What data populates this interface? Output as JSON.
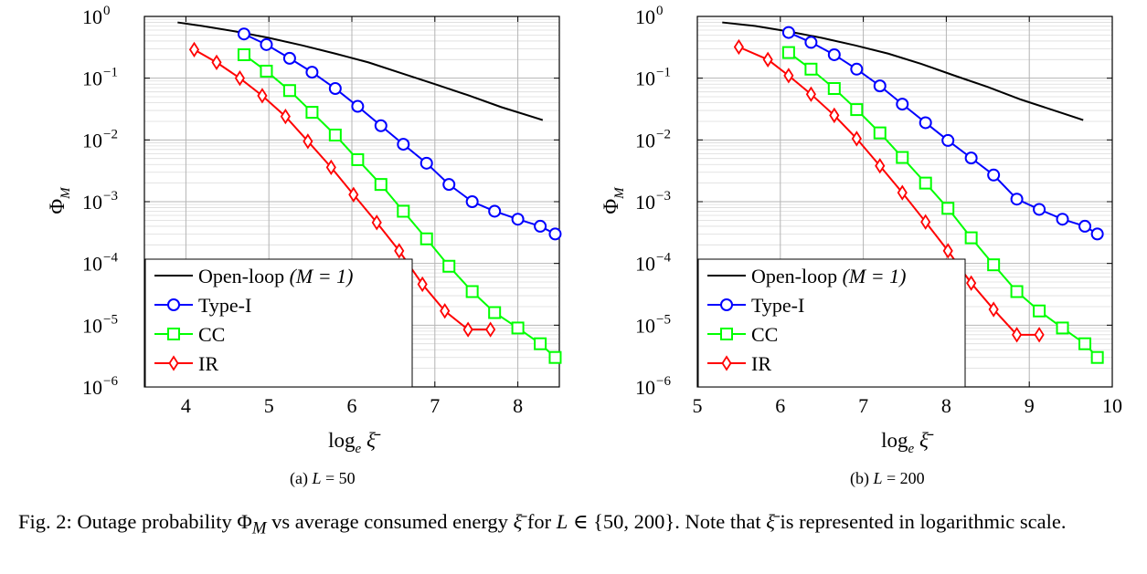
{
  "caption": {
    "label": "Fig. 2:",
    "text": "Outage probability Φ",
    "sub": "M",
    "text2": " vs average consumed energy ",
    "xi": "ξ̄",
    "text3": " for ",
    "L": "L",
    "set": " ∈ {50, 200}. Note that ",
    "text4": " is represented in logarithmic scale."
  },
  "colors": {
    "open_loop": "#000000",
    "type_i": "#0000ff",
    "cc": "#00ff00",
    "ir": "#ff0000"
  },
  "chart_data": [
    {
      "type": "line",
      "subcaption": "(a) L = 50",
      "subcaption_prefix": "(a)",
      "subcaption_var": "L",
      "subcaption_value": " = 50",
      "xlabel": "log",
      "xlabel_sub": "e",
      "xlabel_var": "ξ̄",
      "ylabel": "Φ",
      "ylabel_sub": "M",
      "xlim": [
        3.5,
        8.5
      ],
      "ylim": [
        1e-06,
        1
      ],
      "yscale": "log",
      "xticks": [
        "4",
        "5",
        "6",
        "7",
        "8"
      ],
      "yticks": [
        {
          "base": "10",
          "exp": "0"
        },
        {
          "base": "10",
          "exp": "−1"
        },
        {
          "base": "10",
          "exp": "−2"
        },
        {
          "base": "10",
          "exp": "−3"
        },
        {
          "base": "10",
          "exp": "−4"
        },
        {
          "base": "10",
          "exp": "−5"
        },
        {
          "base": "10",
          "exp": "−6"
        }
      ],
      "grid": true,
      "legend_position": "bottom-left",
      "series": [
        {
          "name": "Open-loop",
          "name_math": "(M = 1)",
          "marker": "none",
          "color": "#000000",
          "x": [
            3.9,
            4.2,
            4.6,
            5.0,
            5.4,
            5.8,
            6.2,
            6.6,
            7.0,
            7.4,
            7.8,
            8.3
          ],
          "y": [
            0.8,
            0.7,
            0.57,
            0.45,
            0.34,
            0.25,
            0.18,
            0.12,
            0.08,
            0.053,
            0.034,
            0.021
          ]
        },
        {
          "name": "Type-I",
          "marker": "circle",
          "color": "#0000ff",
          "x": [
            4.7,
            4.97,
            5.25,
            5.52,
            5.8,
            6.07,
            6.35,
            6.62,
            6.9,
            7.17,
            7.45,
            7.72,
            8.0,
            8.27,
            8.45
          ],
          "y": [
            0.52,
            0.35,
            0.21,
            0.125,
            0.068,
            0.035,
            0.017,
            0.0085,
            0.0042,
            0.0019,
            0.001,
            0.0007,
            0.00052,
            0.0004,
            0.0003
          ]
        },
        {
          "name": "CC",
          "marker": "square",
          "color": "#00ff00",
          "x": [
            4.7,
            4.97,
            5.25,
            5.52,
            5.8,
            6.07,
            6.35,
            6.62,
            6.9,
            7.17,
            7.45,
            7.72,
            8.0,
            8.27,
            8.45
          ],
          "y": [
            0.24,
            0.13,
            0.063,
            0.028,
            0.012,
            0.0048,
            0.0019,
            0.0007,
            0.00025,
            9e-05,
            3.5e-05,
            1.6e-05,
            9e-06,
            5e-06,
            3e-06
          ]
        },
        {
          "name": "IR",
          "marker": "diamond",
          "color": "#ff0000",
          "x": [
            4.1,
            4.37,
            4.65,
            4.92,
            5.2,
            5.47,
            5.75,
            6.02,
            6.3,
            6.57,
            6.85,
            7.12,
            7.4,
            7.67
          ],
          "y": [
            0.29,
            0.18,
            0.1,
            0.052,
            0.024,
            0.0095,
            0.0036,
            0.0013,
            0.00046,
            0.00016,
            4.6e-05,
            1.7e-05,
            8.5e-06,
            8.5e-06
          ]
        }
      ]
    },
    {
      "type": "line",
      "subcaption": "(b) L = 200",
      "subcaption_prefix": "(b)",
      "subcaption_var": "L",
      "subcaption_value": " = 200",
      "xlabel": "log",
      "xlabel_sub": "e",
      "xlabel_var": "ξ̄",
      "ylabel": "Φ",
      "ylabel_sub": "M",
      "xlim": [
        5,
        10
      ],
      "ylim": [
        1e-06,
        1
      ],
      "yscale": "log",
      "xticks": [
        "5",
        "6",
        "7",
        "8",
        "9",
        "10"
      ],
      "yticks": [
        {
          "base": "10",
          "exp": "0"
        },
        {
          "base": "10",
          "exp": "−1"
        },
        {
          "base": "10",
          "exp": "−2"
        },
        {
          "base": "10",
          "exp": "−3"
        },
        {
          "base": "10",
          "exp": "−4"
        },
        {
          "base": "10",
          "exp": "−5"
        },
        {
          "base": "10",
          "exp": "−6"
        }
      ],
      "grid": true,
      "legend_position": "bottom-left",
      "series": [
        {
          "name": "Open-loop",
          "name_math": "(M = 1)",
          "marker": "none",
          "color": "#000000",
          "x": [
            5.3,
            5.7,
            6.1,
            6.5,
            6.9,
            7.3,
            7.7,
            8.1,
            8.5,
            8.9,
            9.3,
            9.65
          ],
          "y": [
            0.8,
            0.7,
            0.57,
            0.45,
            0.34,
            0.25,
            0.17,
            0.11,
            0.072,
            0.045,
            0.03,
            0.021
          ]
        },
        {
          "name": "Type-I",
          "marker": "circle",
          "color": "#0000ff",
          "x": [
            6.1,
            6.37,
            6.65,
            6.92,
            7.2,
            7.47,
            7.75,
            8.02,
            8.3,
            8.57,
            8.85,
            9.12,
            9.4,
            9.67,
            9.82
          ],
          "y": [
            0.55,
            0.38,
            0.24,
            0.14,
            0.075,
            0.038,
            0.019,
            0.0098,
            0.0051,
            0.0027,
            0.0011,
            0.00075,
            0.00052,
            0.0004,
            0.0003
          ]
        },
        {
          "name": "CC",
          "marker": "square",
          "color": "#00ff00",
          "x": [
            6.1,
            6.37,
            6.65,
            6.92,
            7.2,
            7.47,
            7.75,
            8.02,
            8.3,
            8.57,
            8.85,
            9.12,
            9.4,
            9.67,
            9.82
          ],
          "y": [
            0.26,
            0.14,
            0.068,
            0.031,
            0.013,
            0.0052,
            0.002,
            0.00078,
            0.00026,
            9.5e-05,
            3.5e-05,
            1.7e-05,
            9e-06,
            5e-06,
            3e-06
          ]
        },
        {
          "name": "IR",
          "marker": "diamond",
          "color": "#ff0000",
          "x": [
            5.5,
            5.85,
            6.1,
            6.37,
            6.65,
            6.92,
            7.2,
            7.47,
            7.75,
            8.02,
            8.3,
            8.57,
            8.85,
            9.12
          ],
          "y": [
            0.32,
            0.2,
            0.11,
            0.055,
            0.025,
            0.0105,
            0.0038,
            0.0014,
            0.00047,
            0.00016,
            4.8e-05,
            1.8e-05,
            7e-06,
            7e-06
          ]
        }
      ]
    }
  ]
}
